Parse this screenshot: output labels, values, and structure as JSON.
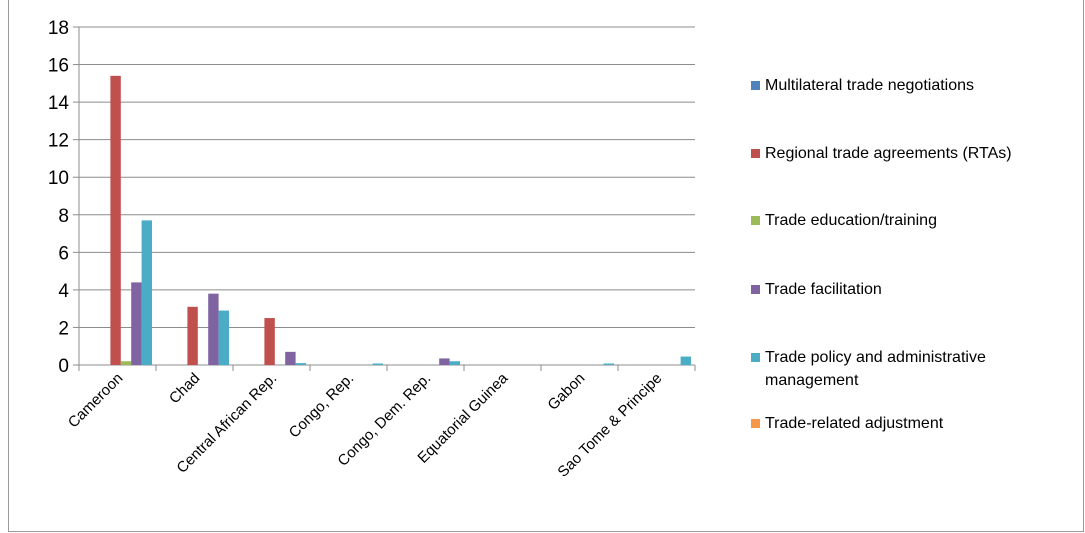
{
  "chart_data": {
    "type": "bar",
    "title": "",
    "xlabel": "",
    "ylabel": "",
    "ylim": [
      0,
      18
    ],
    "yticks": [
      0,
      2,
      4,
      6,
      8,
      10,
      12,
      14,
      16,
      18
    ],
    "grid": true,
    "legend_position": "right",
    "categories": [
      "Cameroon",
      "Chad",
      "Central African Rep.",
      "Congo, Rep.",
      "Congo, Dem. Rep.",
      "Equatorial Guinea",
      "Gabon",
      "Sao Tome & Principe"
    ],
    "series": [
      {
        "name": "Multilateral trade negotiations",
        "color": "#4F81BD",
        "values": [
          0,
          0,
          0,
          0,
          0,
          0,
          0,
          0
        ]
      },
      {
        "name": "Regional trade agreements (RTAs)",
        "color": "#C0504D",
        "values": [
          15.4,
          3.1,
          2.5,
          0,
          0,
          0,
          0,
          0
        ]
      },
      {
        "name": "Trade education/training",
        "color": "#9BBB59",
        "values": [
          0.2,
          0,
          0,
          0,
          0,
          0,
          0,
          0
        ]
      },
      {
        "name": "Trade facilitation",
        "color": "#8064A2",
        "values": [
          4.4,
          3.8,
          0.7,
          0,
          0.35,
          0,
          0,
          0
        ]
      },
      {
        "name": "Trade policy and administrative management",
        "color": "#4BACC6",
        "values": [
          7.7,
          2.9,
          0.1,
          0.08,
          0.2,
          0,
          0.08,
          0.45
        ]
      },
      {
        "name": "Trade-related adjustment",
        "color": "#F79646",
        "values": [
          0,
          0,
          0,
          0,
          0,
          0,
          0,
          0
        ]
      }
    ]
  }
}
